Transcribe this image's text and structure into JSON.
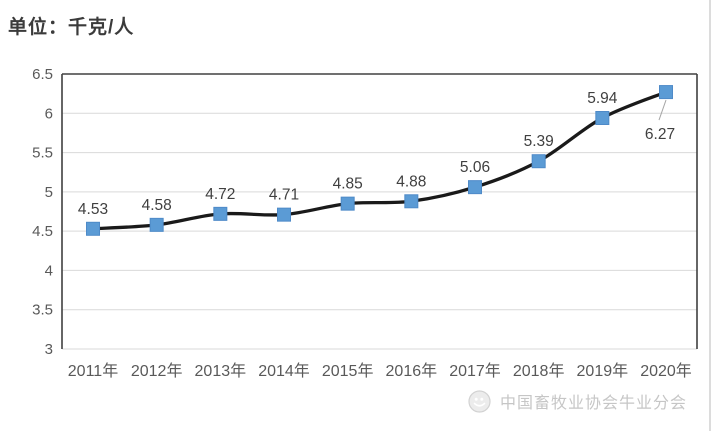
{
  "page": {
    "unit_label": "单位：千克/人",
    "footer": {
      "logo": "wechat-logo-icon",
      "text": "中国畜牧业协会牛业分会"
    }
  },
  "chart_data": {
    "type": "line",
    "title": "",
    "unit_label": "单位：千克/人",
    "categories": [
      "2011年",
      "2012年",
      "2013年",
      "2014年",
      "2015年",
      "2016年",
      "2017年",
      "2018年",
      "2019年",
      "2020年"
    ],
    "values": [
      4.53,
      4.58,
      4.72,
      4.71,
      4.85,
      4.88,
      5.06,
      5.39,
      5.94,
      6.27
    ],
    "point_labels": [
      "4.53",
      "4.58",
      "4.72",
      "4.71",
      "4.85",
      "4.88",
      "5.06",
      "5.39",
      "5.94",
      "6.27"
    ],
    "ylim": [
      3,
      6.5
    ],
    "yticks": [
      3,
      3.5,
      4,
      4.5,
      5,
      5.5,
      6,
      6.5
    ],
    "grid": true,
    "legend": "none",
    "smooth_line": true,
    "data_labels": true,
    "last_label_position": "below-with-leader",
    "colors": {
      "line": "#1a1a1a",
      "marker": "#5b9bd5",
      "marker_border": "#4e8ac8",
      "gridline": "#d9d9d9",
      "axis_border": "#404040",
      "tick_label": "#595959",
      "data_label": "#404040",
      "leader_line": "#a6a6a6"
    }
  }
}
